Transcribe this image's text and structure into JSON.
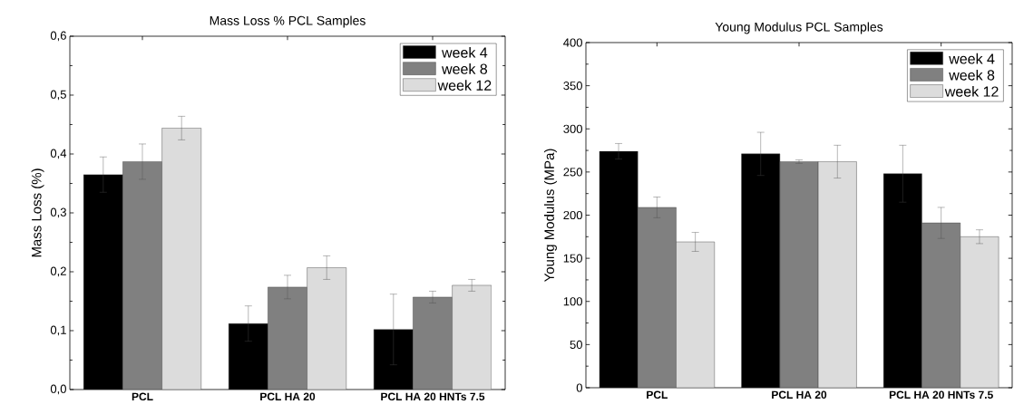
{
  "chart_data": [
    {
      "type": "bar",
      "title": "Mass Loss % PCL Samples",
      "ylabel": "Mass Loss (%)",
      "categories": [
        "PCL",
        "PCL HA 20",
        "PCL HA 20 HNTs 7.5"
      ],
      "series": [
        {
          "name": "week 4",
          "color": "#000000",
          "values": [
            0.365,
            0.112,
            0.102
          ],
          "errors": [
            0.03,
            0.03,
            0.06
          ]
        },
        {
          "name": "week 8",
          "color": "#808080",
          "values": [
            0.387,
            0.174,
            0.157
          ],
          "errors": [
            0.03,
            0.02,
            0.01
          ]
        },
        {
          "name": "week 12",
          "color": "#dcdcdc",
          "values": [
            0.444,
            0.207,
            0.177
          ],
          "errors": [
            0.02,
            0.02,
            0.01
          ]
        }
      ],
      "ylim": [
        0,
        0.6
      ],
      "yticks": [
        {
          "value": 0,
          "label": "0,0"
        },
        {
          "value": 0.1,
          "label": "0,1"
        },
        {
          "value": 0.2,
          "label": "0,2"
        },
        {
          "value": 0.3,
          "label": "0,3"
        },
        {
          "value": 0.4,
          "label": "0,4"
        },
        {
          "value": 0.5,
          "label": "0,5"
        },
        {
          "value": 0.6,
          "label": "0,6"
        }
      ],
      "legend": "top right",
      "grid": false
    },
    {
      "type": "bar",
      "title": "Young Modulus PCL Samples",
      "ylabel": "Young Modulus (MPa)",
      "categories": [
        "PCL",
        "PCL HA 20",
        "PCL HA 20 HNTs 7.5"
      ],
      "series": [
        {
          "name": "week 4",
          "color": "#000000",
          "values": [
            274,
            271,
            248
          ],
          "errors": [
            9,
            25,
            33
          ]
        },
        {
          "name": "week 8",
          "color": "#808080",
          "values": [
            209,
            262,
            191
          ],
          "errors": [
            12,
            2,
            18
          ]
        },
        {
          "name": "week 12",
          "color": "#dcdcdc",
          "values": [
            169,
            262,
            175
          ],
          "errors": [
            11,
            19,
            8
          ]
        }
      ],
      "ylim": [
        0,
        400
      ],
      "yticks": [
        0,
        50,
        100,
        150,
        200,
        250,
        300,
        350,
        400
      ],
      "legend": "top right",
      "grid": false
    }
  ]
}
